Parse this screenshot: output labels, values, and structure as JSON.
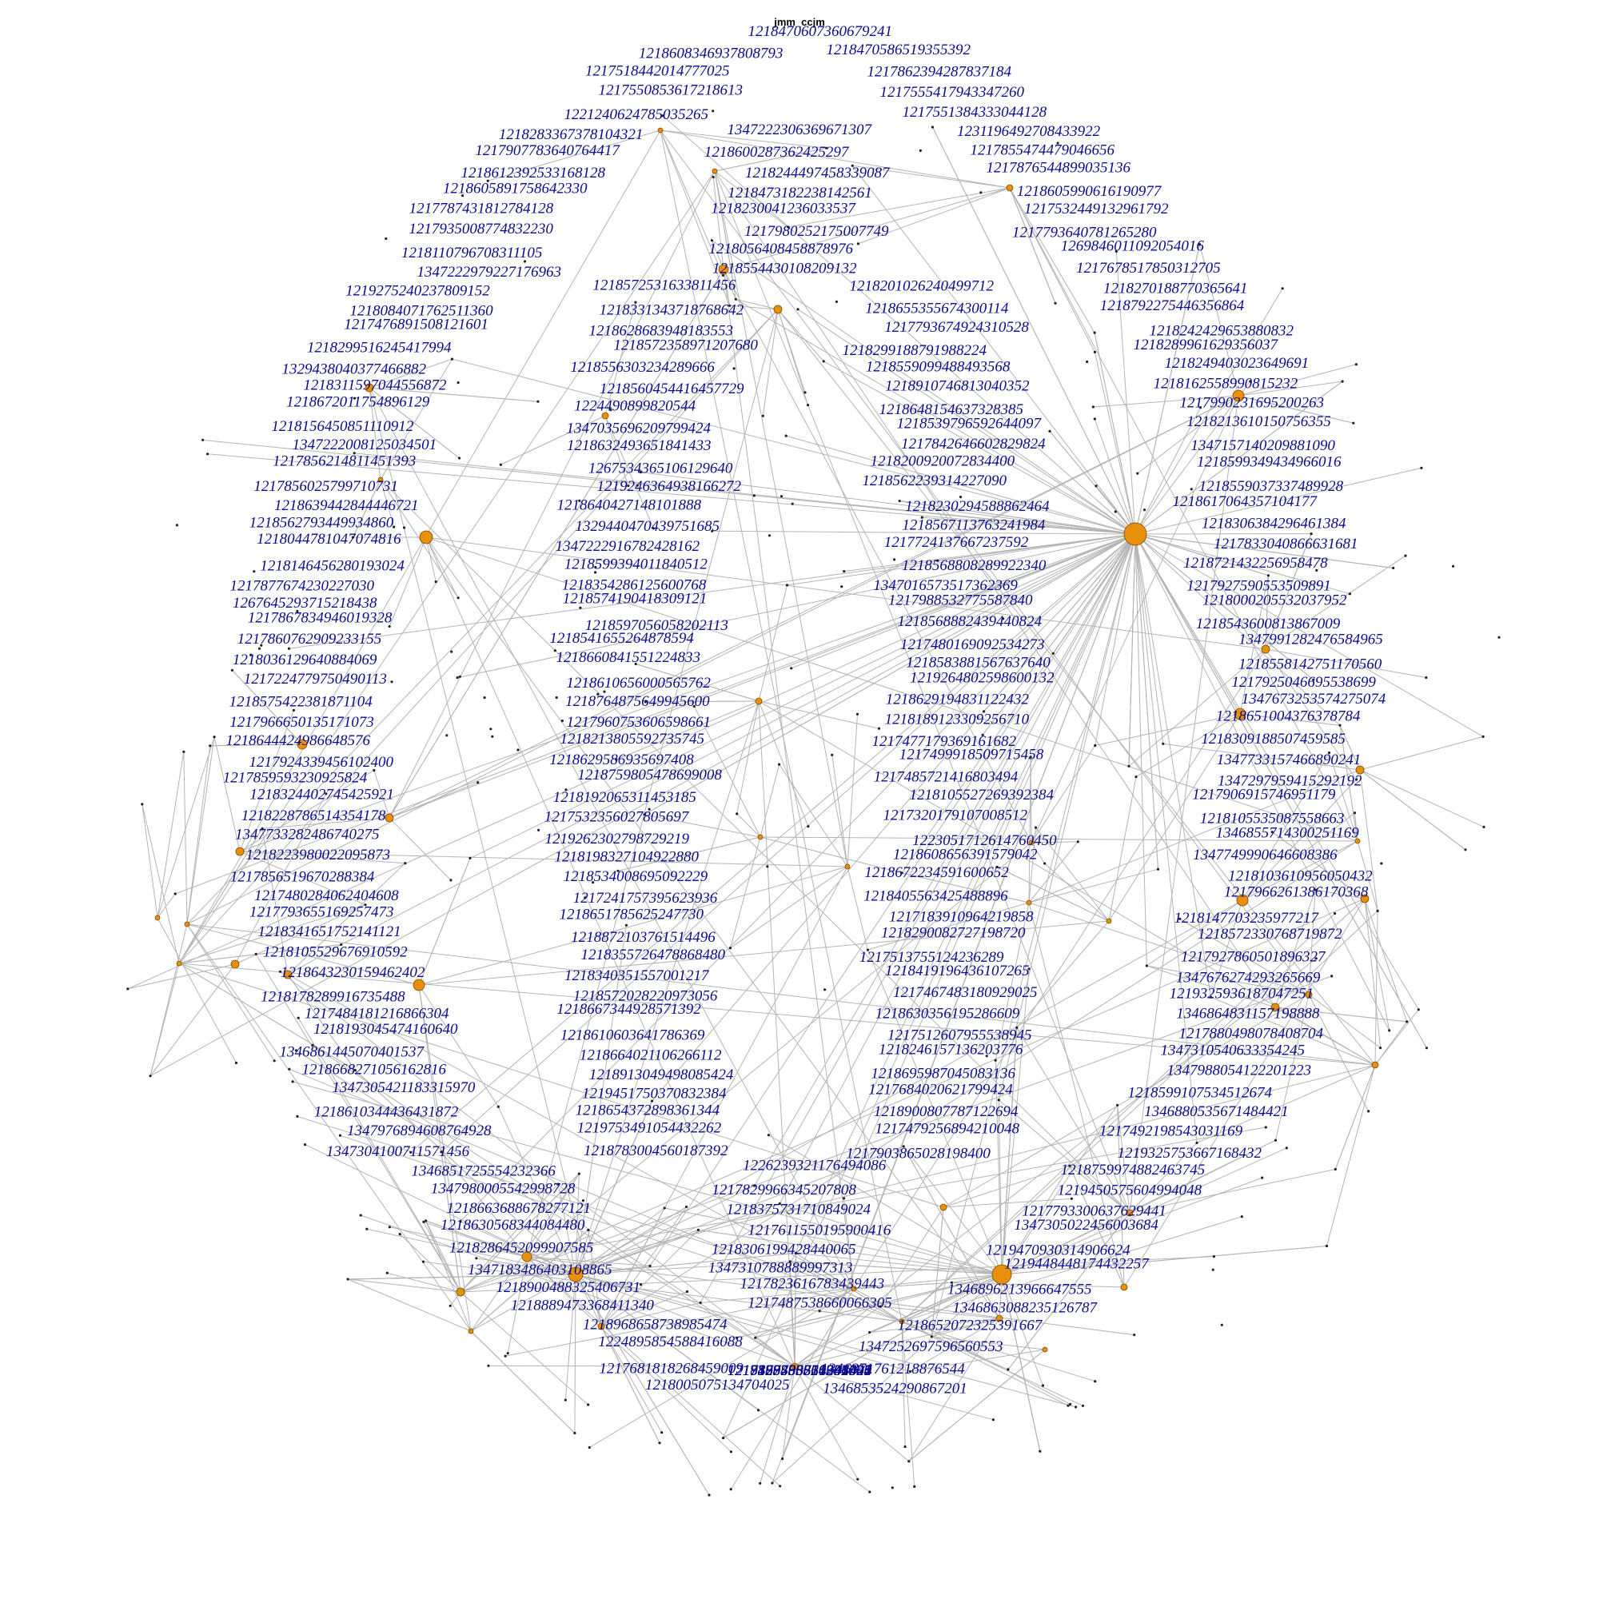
{
  "title": "jmm_ccjm",
  "colors": {
    "node": "#e8900c",
    "label": "#0a0a8c",
    "edge": "#b4b4b4",
    "leaf": "#222222"
  },
  "labels": [
    "1218470607360679241",
    "1218608346937808793",
    "1218470586519355392",
    "1217518442014777025",
    "1217862394287837184",
    "1217550853617218613",
    "1217555417943347260",
    "1221240624785035265",
    "1217551384333044128",
    "1218283367378104321",
    "1347222306369671307",
    "1231196492708433922",
    "1217907783640764417",
    "1218600287362425297",
    "1217855474479046656",
    "1218612392533168128",
    "1218244497458339087",
    "1217876544899035136",
    "1218605891758642330",
    "1218473182238142561",
    "1218605990616190977",
    "1217787431812784128",
    "1218230041236033537",
    "1217532449132961792",
    "1217935008774832230",
    "1217980252175007749",
    "1217793640781265280",
    "1218110796708311105",
    "1218056408458878976",
    "1269846011092054016",
    "1347222979227176963",
    "1218554430108209132",
    "1217678517850312705",
    "1219275240237809152",
    "1218572531633811456",
    "1218201026240499712",
    "1218270188770365641",
    "1218084071762511360",
    "1218331343718768642",
    "1218655355674300114",
    "1218792275446356864",
    "1217476891508121601",
    "1218628683948183553",
    "1217793674924310528",
    "1218242429653880832",
    "1218299516245417994",
    "1218572358971207680",
    "1218299188791988224",
    "1218289961629356037",
    "1329438040377466882",
    "1218556303234289666",
    "1218559099488493568",
    "1218249403023649691",
    "1218311597044556872",
    "1218560454416457729",
    "1218910746813040352",
    "1218162558990815232",
    "1218672011754896129",
    "1224490899820544",
    "1218648154637328385",
    "1217990231695200263",
    "1218156450851110912",
    "1347035696209799424",
    "1218539796592644097",
    "1218213610150756355",
    "1347222008125034501",
    "1218632493651841433",
    "1217842646602829824",
    "1347157140209881090",
    "1217856214811451393",
    "1267534365106129640",
    "1218200920072834400",
    "1218599349434966016",
    "1217856025799710731",
    "1219246364938166272",
    "1218562239314227090",
    "1218559037337489928",
    "1218639442844446721",
    "1218640427148101888",
    "1218230294588862464",
    "1218617064357104177",
    "1218562793449934860",
    "1329440470439751685",
    "1218567113763241984",
    "1218306384296461384",
    "1218044781047074816",
    "1347222916782428162",
    "1217724137667237592",
    "1217833040866631681",
    "1218146456280193024",
    "1218599394011840512",
    "1218568808289922340",
    "1218721432256958478",
    "1217877674230227030",
    "1218354286125600768",
    "1347016573517362369",
    "1217927590553509891",
    "1267645293715218438",
    "1218574190418309121",
    "1217988532775587840",
    "1218000205532037952",
    "1217867834946019328",
    "1218597056058202113",
    "1218568882439440824",
    "1218543600813867009",
    "1217860762909233155",
    "1218541655264878594",
    "1217480169092534273",
    "1347991282476584965",
    "1218036129640884069",
    "1218660841551224833",
    "1218583881567637640",
    "1218558142751170560",
    "1217224779750490113",
    "1218610656000565762",
    "1219264802598600132",
    "1217925046695538699",
    "1218575422381871104",
    "1218764875649945600",
    "1218629194831122432",
    "1347673253574275074",
    "1217966650135171073",
    "1217960753606598661",
    "1218189123309256710",
    "1218651004376378784",
    "1218644424986648576",
    "1218213805592735745",
    "1217477179369161682",
    "1218309188507459585",
    "1217924339456102400",
    "1218629586935697408",
    "1217499918509715458",
    "1347733157466890241",
    "1217859593230925824",
    "1218759805478699008",
    "1217485721416803494",
    "1347297959415292192",
    "1218324402745425921",
    "1218192065311453185",
    "1218105527269392384",
    "1217906915746951179",
    "1218228786514354178",
    "1217532356027805697",
    "1217320179107008512",
    "1218105535087558663",
    "1347733282486740275",
    "1219262302798729219",
    "1223051712614760450",
    "1346855714300251169",
    "1218223980022095873",
    "1218198327104922880",
    "1218608656391579042",
    "1347749990646608386",
    "1217856519670288384",
    "1218534008695092229",
    "1218672234591600652",
    "1218103610956050432",
    "1217480284062404608",
    "1217241757395623936",
    "1218405563425488896",
    "1217966261386170368",
    "1217793655169257473",
    "1218651785625247730",
    "1217183910964219858",
    "1218147703235977217",
    "1218341651752141121",
    "1218872103761514496",
    "1218290082727198720",
    "1218572330768719872",
    "1218105529676910592",
    "1218355726478868480",
    "1217513755124236289",
    "1217927860501896327",
    "1218643230159462402",
    "1218340351557001217",
    "1218419196436107265",
    "1347676274293265669",
    "1218178289916735488",
    "1218572028220973056",
    "1217467483180929025",
    "1219325936187047251",
    "1217484181216866304",
    "1218667344928571392",
    "1218630356195286609",
    "1346864831157198888",
    "1218193045474160640",
    "1218610603641786369",
    "1217512607955538945",
    "1217880498078408704",
    "1346861445070401537",
    "1218664021106266112",
    "1218246157136203776",
    "1347310540633354245",
    "1218668271056162816",
    "1218913049498085424",
    "1218695987045083136",
    "1347988054122201223",
    "1347305421183315970",
    "1219451750370832384",
    "1217684020621799424",
    "1218599107534512674",
    "1218610344436431872",
    "1218654372898361344",
    "1218900807787122694",
    "1346880535671484421",
    "1347976894608764928",
    "1219753491054432262",
    "1217479256894210048",
    "1217492198543031169",
    "1347304100711571456",
    "1218783004560187392",
    "1217903865028198400",
    "1219325753667168432",
    "1346851725554232366",
    "1226239321176494086",
    "1218759974882463745",
    "1347980005542998728",
    "1217829966345207808",
    "1219450575604994048",
    "1218663688678277121",
    "1218375731710849024",
    "1217793300637629441",
    "1218630568344084480",
    "1217611550195900416",
    "1347305022456003684",
    "1218286452099907585",
    "1218306199428440065",
    "1219470930314906624",
    "1347183486403108865",
    "1347310788889997313",
    "1219448448174432257",
    "1218900488325406731",
    "1217823616783439443",
    "1346896213966647555",
    "1218889473368411340",
    "1217487538660066305",
    "1346863088235126787",
    "1218968658738985474",
    "1218652072325391667",
    "1224895854588416088",
    "1347252697596560553",
    "1217681818268459009",
    "1346871761218876544",
    "1218005075134704025",
    "1346853524290867201",
    "1217487538666304501",
    "1219458703826542593",
    "1217890488314906624",
    "1217879800751347040",
    "1217867705526301057",
    "1219325753361057006",
    "1218123596720201428"
  ]
}
